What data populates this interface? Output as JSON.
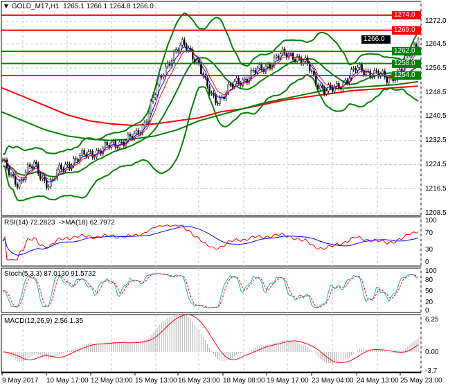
{
  "header": {
    "symbol_timeframe": "GOLD_M17,H1",
    "ohlc": "1265.1 1266.1 1264.8 1266.0"
  },
  "price_axis": {
    "ticks": [
      "1272.0",
      "1264.5",
      "1256.5",
      "1248.5",
      "1240.5",
      "1232.5",
      "1224.5",
      "1216.5",
      "1208.5"
    ],
    "levels": [
      {
        "label": "1274.0",
        "price": 1274,
        "color": "#ff0000"
      },
      {
        "label": "1269.0",
        "price": 1269,
        "color": "#ff0000"
      },
      {
        "label": "1262.0",
        "price": 1262,
        "color": "#008000"
      },
      {
        "label": "1258.0",
        "price": 1258,
        "color": "#008000"
      },
      {
        "label": "1254.0",
        "price": 1254,
        "color": "#008000"
      }
    ],
    "current": {
      "label": "1266.0",
      "price": 1266,
      "color": "#000000"
    }
  },
  "price_closes": [
    1226,
    1220,
    1218,
    1223,
    1224,
    1220,
    1218,
    1222,
    1224,
    1226,
    1227,
    1228,
    1229,
    1230,
    1231,
    1232,
    1233,
    1234,
    1238,
    1245,
    1252,
    1258,
    1262,
    1264,
    1262,
    1258,
    1250,
    1246,
    1247,
    1250,
    1252,
    1253,
    1255,
    1256,
    1258,
    1260,
    1261,
    1261,
    1259,
    1257,
    1252,
    1249,
    1249,
    1251,
    1253,
    1256,
    1256,
    1255,
    1254,
    1253,
    1254,
    1256,
    1262,
    1266
  ],
  "slow_ma": [
    1250,
    1247,
    1244,
    1241,
    1239,
    1238,
    1237.5,
    1238,
    1239,
    1240,
    1242,
    1243,
    1244.5,
    1246,
    1247,
    1248,
    1249,
    1249.5,
    1250,
    1250.5
  ],
  "mid_ma": [
    1242,
    1239,
    1236,
    1234,
    1233,
    1232.5,
    1233,
    1234,
    1236,
    1239,
    1241,
    1243,
    1245,
    1246.5,
    1248,
    1249.5,
    1250,
    1250.5,
    1251,
    1252
  ],
  "colors": {
    "bollinger": "#008000",
    "fast_ma": "#0000ff",
    "fast_ma2": "#ff0000",
    "slow_ma": "#ff0000",
    "mid_ma": "#008000",
    "rsi": "#ff0000",
    "rsi_ma": "#0000ff",
    "stoch_main": "#20b2aa",
    "stoch_signal": "#ff0000",
    "macd": "#ff0000",
    "histogram": "#b0b0b0"
  },
  "rsi": {
    "title": "RSI(14) 72.2823  ->MA(18) 62.7972",
    "ticks": [
      "100",
      "70",
      "30",
      "0"
    ]
  },
  "stoch": {
    "title": "Stoch(5,3,3) 87.0130 91.5732",
    "ticks": [
      "100",
      "80",
      "50",
      "20",
      "0"
    ]
  },
  "macd": {
    "title": "MACD(12,26,9) 2.56 1.35",
    "ticks": [
      "6.25",
      "0.00",
      "-3.7"
    ]
  },
  "time_axis": [
    "9 May 2017",
    "10 May 17:00",
    "12 May 03:00",
    "15 May 13:00",
    "16 May 23:00",
    "18 May 08:00",
    "19 May 17:00",
    "23 May 04:00",
    "24 May 13:00",
    "25 May 23:00"
  ]
}
